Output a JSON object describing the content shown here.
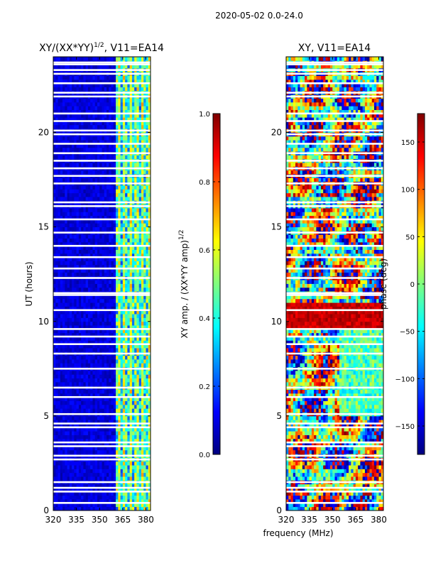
{
  "header": "2020-05-02 0.0-24.0",
  "shared_xlabel": "frequency (MHz)",
  "colors": {
    "jet": [
      "#00007f",
      "#0000ff",
      "#007fff",
      "#00ffff",
      "#7fff7f",
      "#ffff00",
      "#ff7f00",
      "#ff0000",
      "#7f0000"
    ],
    "gap": "#ffffff"
  },
  "chart_data": [
    {
      "type": "heatmap",
      "title_main": "XY/(XX*YY)",
      "title_exp": "1/2",
      "title_tail": ", V11=EA14",
      "xlabel": "",
      "ylabel": "UT (hours)",
      "xlim": [
        320,
        383
      ],
      "ylim": [
        0,
        24
      ],
      "xticks": [
        "320",
        "335",
        "350",
        "365",
        "380"
      ],
      "xtick_values": [
        320,
        335,
        350,
        365,
        380
      ],
      "yticks": [
        "0",
        "5",
        "10",
        "15",
        "20"
      ],
      "ytick_values": [
        0,
        5,
        10,
        15,
        20
      ],
      "colorbar": {
        "label_main": "XY amp. / (XX*YY amp)",
        "label_exp": "1/2",
        "range": [
          0.0,
          1.0
        ],
        "ticks": [
          "0.0",
          "0.2",
          "0.4",
          "0.6",
          "0.8",
          "1.0"
        ],
        "tick_values": [
          0.0,
          0.2,
          0.4,
          0.6,
          0.8,
          1.0
        ]
      },
      "flagged_hours": [
        0.4,
        1.0,
        1.2,
        1.5,
        2.7,
        2.9,
        3.4,
        3.6,
        4.4,
        4.6,
        5.1,
        6.0,
        6.5,
        7.5,
        8.3,
        8.8,
        9.2,
        9.6,
        10.6,
        11.4,
        11.5,
        12.3,
        12.8,
        13.4,
        14.0,
        14.7,
        15.4,
        16.1,
        16.3,
        17.3,
        17.7,
        18.1,
        18.5,
        18.9,
        19.4,
        19.9,
        20.1,
        20.6,
        21.0,
        21.9,
        22.1,
        22.6,
        23.1,
        23.3,
        23.6,
        23.7
      ],
      "description_bands": [
        {
          "freq_range": [
            320,
            360
          ],
          "level": "low"
        },
        {
          "freq_range": [
            360,
            383
          ],
          "level": "elevated"
        }
      ]
    },
    {
      "type": "heatmap",
      "title_main": "XY, V11=EA14",
      "xlabel": "",
      "ylabel": "",
      "xlim": [
        320,
        383
      ],
      "ylim": [
        0,
        24
      ],
      "xticks": [
        "320",
        "335",
        "350",
        "365",
        "380"
      ],
      "xtick_values": [
        320,
        335,
        350,
        365,
        380
      ],
      "yticks": [
        "0",
        "5",
        "10",
        "15",
        "20"
      ],
      "ytick_values": [
        0,
        5,
        10,
        15,
        20
      ],
      "colorbar": {
        "label_main": "phase (deg)",
        "range": [
          -180,
          180
        ],
        "ticks": [
          "−150",
          "−100",
          "−50",
          "0",
          "50",
          "100",
          "150"
        ],
        "tick_values": [
          -150,
          -100,
          -50,
          0,
          50,
          100,
          150
        ]
      },
      "flagged_hours": [
        0.4,
        1.0,
        1.2,
        1.5,
        2.7,
        2.9,
        3.4,
        3.6,
        4.4,
        4.6,
        5.1,
        6.0,
        6.5,
        7.5,
        8.3,
        8.8,
        9.2,
        9.6,
        10.6,
        11.4,
        11.5,
        12.3,
        12.8,
        13.4,
        14.0,
        14.7,
        15.4,
        16.1,
        16.3,
        17.3,
        17.7,
        18.1,
        18.5,
        18.9,
        19.4,
        19.9,
        20.1,
        20.6,
        21.0,
        21.9,
        22.1,
        22.6,
        23.1,
        23.3,
        23.6,
        23.7
      ]
    }
  ]
}
